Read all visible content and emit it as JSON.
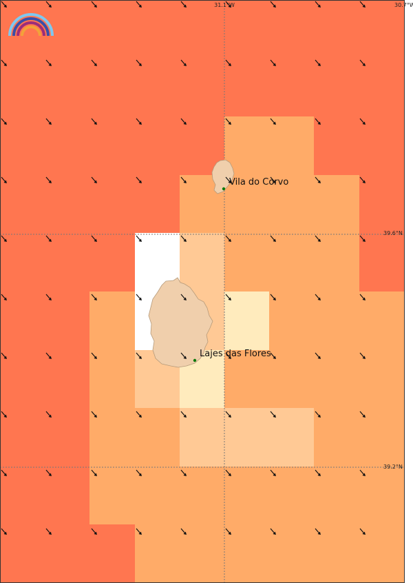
{
  "map": {
    "logo_icon": "rainbow-logo-icon",
    "longitude_labels": [
      "31.1°W",
      "30.7°W"
    ],
    "latitude_labels": [
      "39.6°N",
      "39.2°N"
    ],
    "places": [
      {
        "id": "vila-do-corvo",
        "label": "Vila do Corvo"
      },
      {
        "id": "lajes-das-flores",
        "label": "Lajes das Flores"
      }
    ],
    "land_color": "#f0cfac",
    "marker_color": "#0a7a0a",
    "legend_scale_colors": {
      "A": "#ff7650",
      "B": "#ffab68",
      "C": "#ffc995",
      "D": "#ffebbd",
      "E": "#c8ffc8",
      "W": "#ffffff"
    },
    "grid_cells": [
      "AAAAAAAAA",
      "AAAAAAAAA",
      "AAAAABBAA",
      "AAAABBBBA",
      "AAAWCBBBA",
      "AABWCDBBB",
      "AABCDBBBB",
      "AABBCCCBB",
      "AABBBBBBB",
      "AAABBBBBB"
    ],
    "wind_direction": "south-east"
  }
}
